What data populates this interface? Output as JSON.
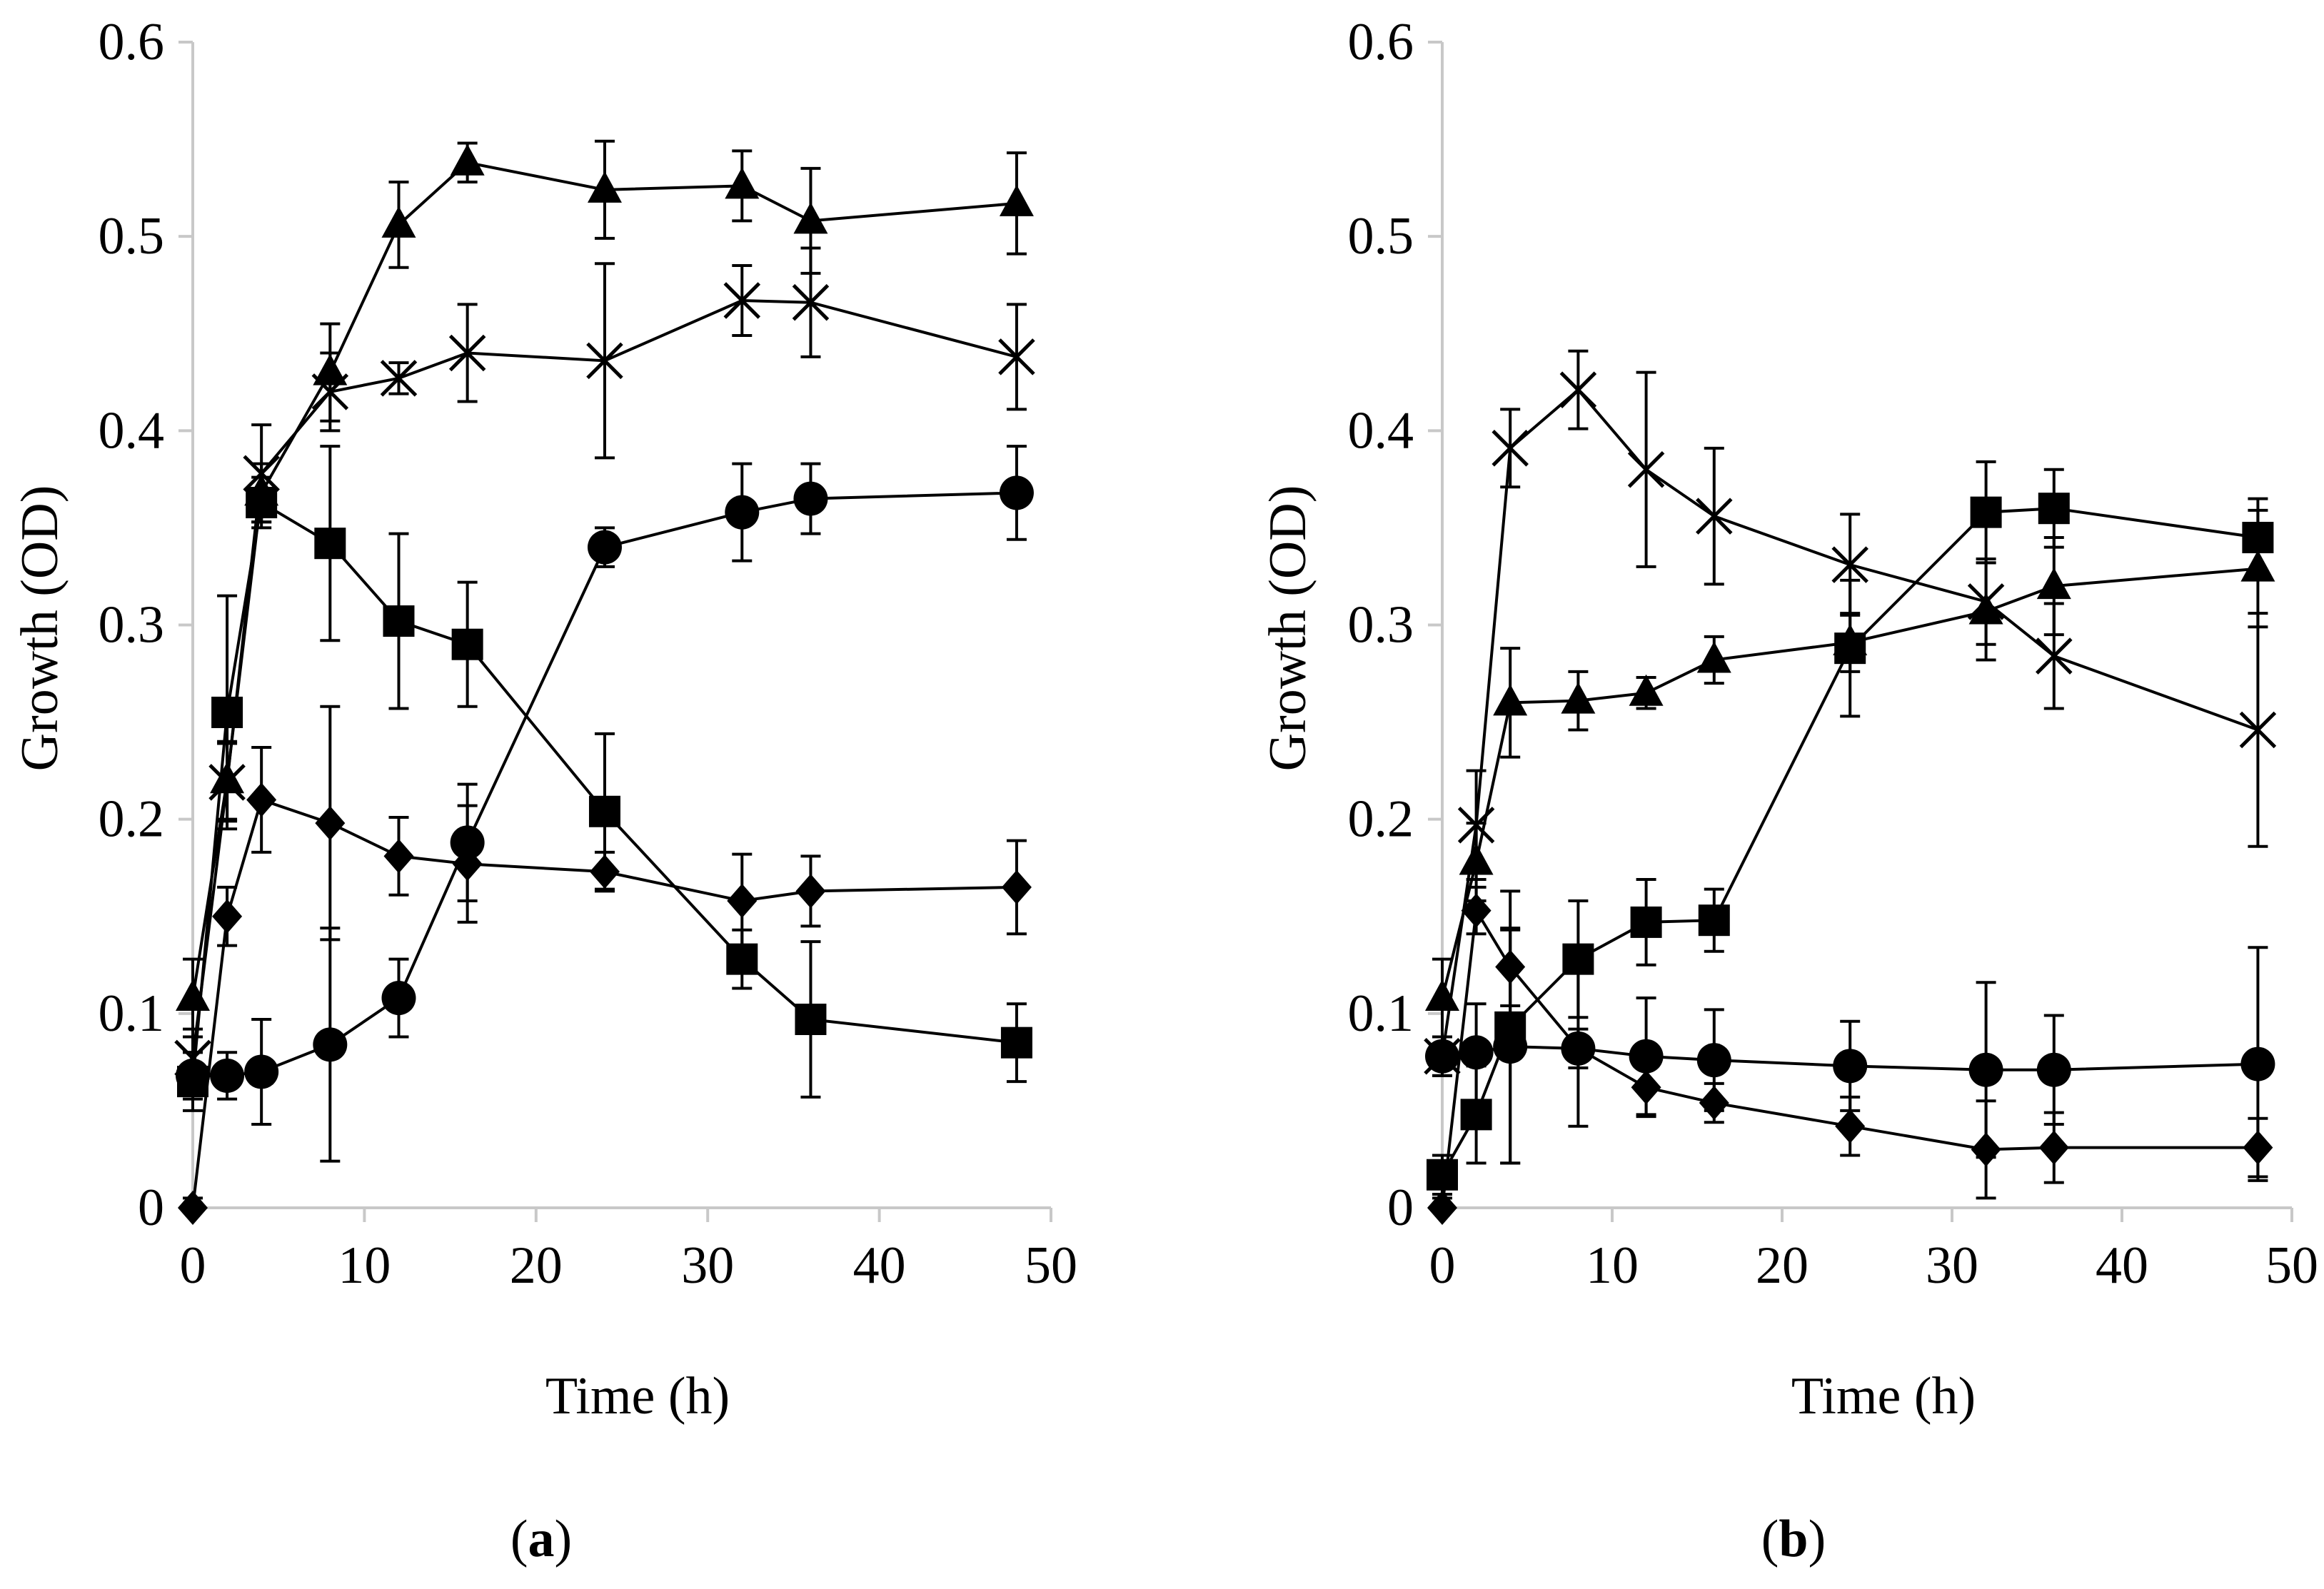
{
  "chart_data": [
    {
      "type": "line",
      "panel_label": "a",
      "xlabel": "Time (h)",
      "ylabel": "Growth (OD)",
      "xlim": [
        0,
        50
      ],
      "ylim": [
        0,
        0.6
      ],
      "xticks": [
        0,
        10,
        20,
        30,
        40,
        50
      ],
      "yticks": [
        0,
        0.1,
        0.2,
        0.3,
        0.4,
        0.5,
        0.6
      ],
      "xtick_labels": [
        "0",
        "10",
        "20",
        "30",
        "40",
        "50"
      ],
      "ytick_labels": [
        "0",
        "0.1",
        "0.2",
        "0.3",
        "0.4",
        "0.5",
        "0.6"
      ],
      "grid": false,
      "series": [
        {
          "name": "diamond",
          "marker": "diamond",
          "x": [
            0,
            2,
            4,
            8,
            12,
            16,
            24,
            32,
            36,
            48
          ],
          "y": [
            0.0,
            0.15,
            0.21,
            0.198,
            0.181,
            0.177,
            0.173,
            0.158,
            0.163,
            0.165
          ],
          "err": [
            0.005,
            0.015,
            0.027,
            0.06,
            0.02,
            0.03,
            0.01,
            0.024,
            0.018,
            0.024
          ]
        },
        {
          "name": "square",
          "marker": "square",
          "x": [
            0,
            2,
            4,
            8,
            12,
            16,
            24,
            32,
            36,
            48
          ],
          "y": [
            0.065,
            0.255,
            0.363,
            0.342,
            0.302,
            0.29,
            0.204,
            0.128,
            0.097,
            0.085
          ],
          "err": [
            0.015,
            0.06,
            0.013,
            0.05,
            0.045,
            0.032,
            0.04,
            0.015,
            0.04,
            0.02
          ]
        },
        {
          "name": "triangle",
          "marker": "triangle",
          "x": [
            0,
            2,
            4,
            8,
            12,
            16,
            24,
            32,
            36,
            48
          ],
          "y": [
            0.108,
            0.22,
            0.368,
            0.43,
            0.506,
            0.538,
            0.524,
            0.526,
            0.508,
            0.517
          ],
          "err": [
            0.02,
            0.02,
            0.015,
            0.025,
            0.022,
            0.01,
            0.025,
            0.018,
            0.027,
            0.026
          ]
        },
        {
          "name": "cross",
          "marker": "x",
          "x": [
            0,
            2,
            4,
            8,
            12,
            16,
            24,
            32,
            36,
            48
          ],
          "y": [
            0.077,
            0.219,
            0.378,
            0.42,
            0.427,
            0.44,
            0.436,
            0.467,
            0.466,
            0.438
          ],
          "err": [
            0.015,
            0.02,
            0.025,
            0.02,
            0.008,
            0.025,
            0.05,
            0.018,
            0.028,
            0.027
          ]
        },
        {
          "name": "circle",
          "marker": "circle",
          "x": [
            0,
            2,
            4,
            8,
            12,
            16,
            24,
            32,
            36,
            48
          ],
          "y": [
            0.068,
            0.068,
            0.07,
            0.084,
            0.108,
            0.188,
            0.34,
            0.358,
            0.365,
            0.368
          ],
          "err": [
            0.012,
            0.012,
            0.027,
            0.06,
            0.02,
            0.03,
            0.01,
            0.025,
            0.018,
            0.024
          ]
        }
      ]
    },
    {
      "type": "line",
      "panel_label": "b",
      "xlabel": "Time (h)",
      "ylabel": "Growth (OD)",
      "xlim": [
        0,
        50
      ],
      "ylim": [
        0,
        0.6
      ],
      "xticks": [
        0,
        10,
        20,
        30,
        40,
        50
      ],
      "yticks": [
        0,
        0.1,
        0.2,
        0.3,
        0.4,
        0.5,
        0.6
      ],
      "xtick_labels": [
        "0",
        "10",
        "20",
        "30",
        "40",
        "50"
      ],
      "ytick_labels": [
        "0",
        "0.1",
        "0.2",
        "0.3",
        "0.4",
        "0.5",
        "0.6"
      ],
      "grid": false,
      "series": [
        {
          "name": "diamond",
          "marker": "diamond",
          "x": [
            0,
            2,
            4,
            8,
            12,
            16,
            24,
            32,
            36,
            48
          ],
          "y": [
            0.0,
            0.153,
            0.124,
            0.082,
            0.062,
            0.054,
            0.042,
            0.03,
            0.031,
            0.031
          ],
          "err": [
            0.005,
            0.012,
            0.02,
            0.01,
            0.015,
            0.01,
            0.015,
            0.025,
            0.018,
            0.015
          ]
        },
        {
          "name": "square",
          "marker": "square",
          "x": [
            0,
            2,
            4,
            8,
            12,
            16,
            24,
            32,
            36,
            48
          ],
          "y": [
            0.017,
            0.048,
            0.093,
            0.128,
            0.147,
            0.148,
            0.288,
            0.358,
            0.36,
            0.345
          ],
          "err": [
            0.01,
            0.025,
            0.07,
            0.03,
            0.022,
            0.016,
            0.035,
            0.026,
            0.02,
            0.02
          ]
        },
        {
          "name": "triangle",
          "marker": "triangle",
          "x": [
            0,
            2,
            4,
            8,
            12,
            16,
            24,
            32,
            36,
            48
          ],
          "y": [
            0.108,
            0.178,
            0.26,
            0.261,
            0.265,
            0.282,
            0.291,
            0.307,
            0.32,
            0.329
          ],
          "err": [
            0.02,
            0.02,
            0.028,
            0.015,
            0.008,
            0.012,
            0.015,
            0.025,
            0.025,
            0.03
          ]
        },
        {
          "name": "cross",
          "marker": "x",
          "x": [
            0,
            2,
            4,
            8,
            12,
            16,
            24,
            32,
            36,
            48
          ],
          "y": [
            0.078,
            0.197,
            0.391,
            0.421,
            0.38,
            0.356,
            0.331,
            0.312,
            0.284,
            0.246
          ],
          "err": [
            0.01,
            0.028,
            0.02,
            0.02,
            0.05,
            0.035,
            0.026,
            0.022,
            0.027,
            0.06
          ]
        },
        {
          "name": "circle",
          "marker": "circle",
          "x": [
            0,
            2,
            4,
            8,
            12,
            16,
            24,
            32,
            36,
            48
          ],
          "y": [
            0.078,
            0.08,
            0.083,
            0.082,
            0.078,
            0.076,
            0.073,
            0.071,
            0.071,
            0.074
          ],
          "err": [
            0.01,
            0.025,
            0.06,
            0.04,
            0.03,
            0.026,
            0.023,
            0.045,
            0.028,
            0.06
          ]
        }
      ]
    }
  ]
}
